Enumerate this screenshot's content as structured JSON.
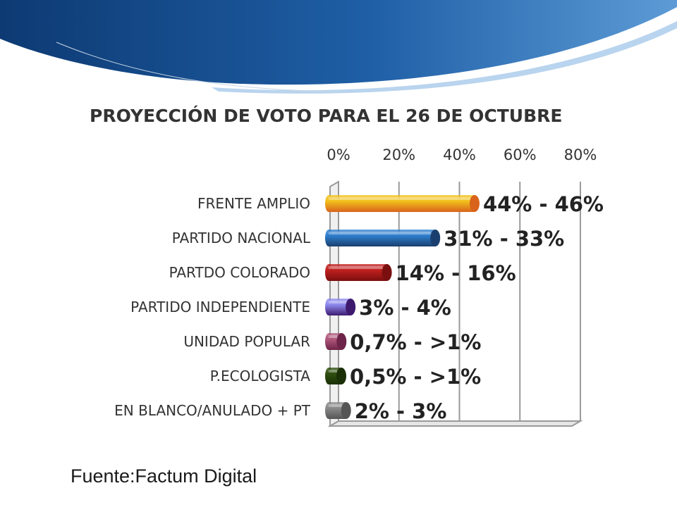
{
  "colors": {
    "header_dark": "#0d3a73",
    "header_mid": "#1f5fa6",
    "header_light": "#5d9bd6",
    "grid": "#9a9a9a"
  },
  "source": "Fuente:Factum Digital",
  "chart_data": {
    "type": "bar",
    "orientation": "horizontal",
    "title": "PROYECCIÓN DE VOTO PARA EL 26 DE OCTUBRE",
    "xlim": [
      0,
      80
    ],
    "x_ticks": [
      "0%",
      "20%",
      "40%",
      "60%",
      "80%"
    ],
    "x_tick_values": [
      0,
      20,
      40,
      60,
      80
    ],
    "grid": true,
    "categories": [
      "FRENTE AMPLIO",
      "PARTIDO NACIONAL",
      "PARTDO COLORADO",
      "PARTIDO INDEPENDIENTE",
      "UNIDAD POPULAR",
      "P.ECOLOGISTA",
      "EN BLANCO/ANULADO + PT"
    ],
    "values": [
      45,
      32,
      16,
      4,
      1,
      0.7,
      2.5
    ],
    "data_labels": [
      "44% - 46%",
      "31% - 33%",
      "14% - 16%",
      "3% - 4%",
      "0,7% - >1%",
      "0,5% - >1%",
      "2% - 3%"
    ],
    "bar_colors": [
      "#f2c21b",
      "#2f7fce",
      "#c0201e",
      "#8f8bf0",
      "#b0587c",
      "#2f4f0f",
      "#8a8a8a"
    ],
    "bar_dark": [
      "#d9631b",
      "#1a3f6e",
      "#7a0f0f",
      "#3d1a6e",
      "#6e2448",
      "#1a2f06",
      "#555555"
    ]
  }
}
